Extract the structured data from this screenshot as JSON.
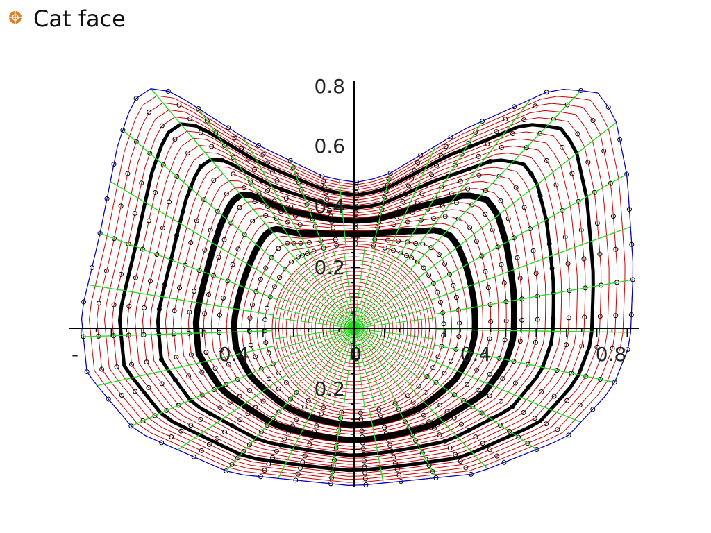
{
  "title": "Cat face",
  "plot": {
    "y_tick_labels": [
      "0.8",
      "0.6",
      "0.4",
      "0.2",
      "0.2"
    ],
    "x_tick_labels": [
      "-",
      "0.4",
      "0",
      "0.4",
      "0.8"
    ]
  }
}
